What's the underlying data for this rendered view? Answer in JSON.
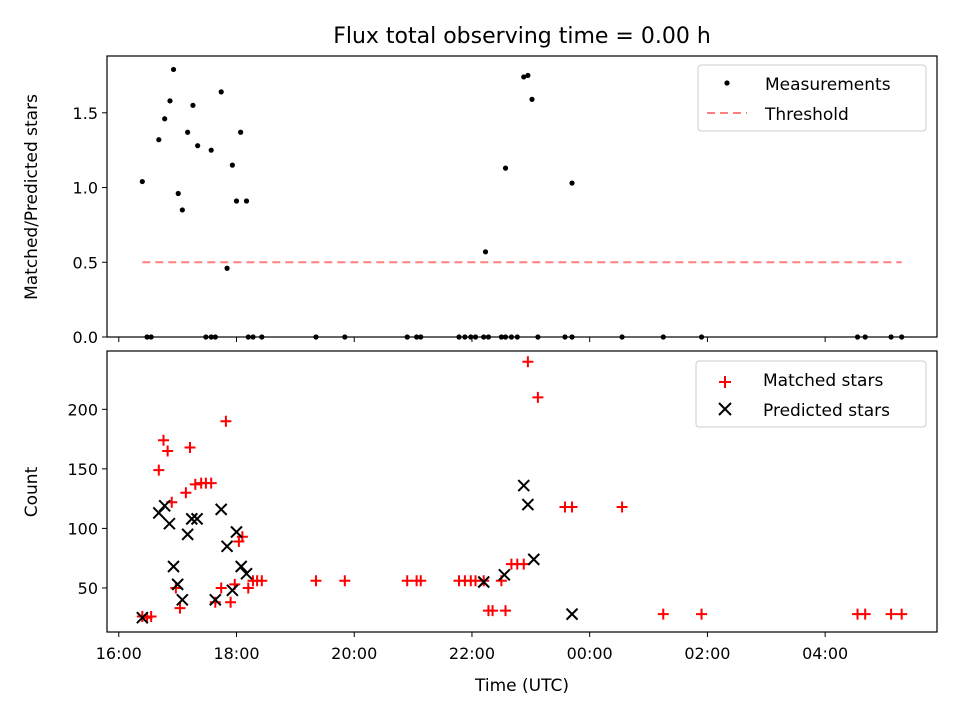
{
  "title": "Flux total observing time = 0.00 h",
  "colors": {
    "measurement": "#000000",
    "threshold": "#ff7f7f",
    "matched": "#ff0000",
    "predicted": "#000000"
  },
  "chart_data": [
    {
      "type": "scatter",
      "ylabel": "Matched/Predicted stars",
      "ylim": [
        0,
        1.88
      ],
      "yticks": [
        0.0,
        0.5,
        1.0,
        1.5
      ],
      "ytick_labels": [
        "0.0",
        "0.5",
        "1.0",
        "1.5"
      ],
      "legend": {
        "position": "top-right",
        "entries": [
          "Measurements",
          "Threshold"
        ]
      },
      "threshold": {
        "value": 0.5,
        "x_start": 16.4,
        "x_end": 29.3
      },
      "series": [
        {
          "name": "Measurements",
          "x": [
            16.4,
            16.68,
            16.78,
            16.87,
            16.93,
            17.01,
            17.08,
            17.17,
            17.26,
            17.34,
            17.57,
            17.74,
            17.84,
            17.93,
            18.0,
            18.07,
            18.17,
            22.23,
            22.57,
            22.88,
            22.95,
            23.02,
            23.7,
            16.48,
            16.55,
            17.48,
            17.57,
            17.64,
            18.2,
            18.28,
            18.43,
            19.35,
            19.84,
            20.9,
            21.06,
            21.13,
            21.78,
            21.88,
            21.98,
            22.06,
            22.2,
            22.28,
            22.5,
            22.57,
            22.67,
            22.77,
            23.12,
            23.58,
            23.7,
            24.55,
            25.25,
            25.9,
            28.55,
            28.68,
            29.12,
            29.3
          ],
          "y": [
            1.04,
            1.32,
            1.46,
            1.58,
            1.79,
            0.96,
            0.85,
            1.37,
            1.55,
            1.28,
            1.25,
            1.64,
            0.46,
            1.15,
            0.91,
            1.37,
            0.91,
            0.57,
            1.13,
            1.74,
            1.75,
            1.59,
            1.03,
            0,
            0,
            0,
            0,
            0,
            0,
            0,
            0,
            0,
            0,
            0,
            0,
            0,
            0,
            0,
            0,
            0,
            0,
            0,
            0,
            0,
            0,
            0,
            0,
            0,
            0,
            0,
            0,
            0,
            0,
            0,
            0,
            0
          ]
        }
      ]
    },
    {
      "type": "scatter",
      "ylabel": "Count",
      "xlabel": "Time (UTC)",
      "xlim": [
        15.8,
        29.9
      ],
      "ylim": [
        13,
        249
      ],
      "yticks": [
        50,
        100,
        150,
        200
      ],
      "ytick_labels": [
        "50",
        "100",
        "150",
        "200"
      ],
      "xticks": [
        16,
        18,
        20,
        22,
        24,
        26,
        28
      ],
      "xtick_labels": [
        "16:00",
        "18:00",
        "20:00",
        "22:00",
        "00:00",
        "02:00",
        "04:00"
      ],
      "legend": {
        "position": "top-right",
        "entries": [
          "Matched stars",
          "Predicted stars"
        ]
      },
      "series": [
        {
          "name": "Matched stars",
          "x": [
            16.4,
            16.48,
            16.55,
            16.68,
            16.76,
            16.83,
            16.9,
            16.97,
            17.04,
            17.14,
            17.21,
            17.3,
            17.4,
            17.48,
            17.57,
            17.64,
            17.74,
            17.82,
            17.9,
            17.97,
            18.04,
            18.1,
            18.2,
            18.28,
            18.35,
            18.43,
            19.35,
            19.84,
            20.9,
            21.06,
            21.13,
            21.78,
            21.88,
            21.98,
            22.06,
            22.2,
            22.28,
            22.35,
            22.57,
            22.5,
            22.67,
            22.77,
            22.88,
            22.95,
            23.12,
            23.58,
            23.7,
            24.55,
            25.25,
            25.9,
            28.55,
            28.68,
            29.12,
            29.3
          ],
          "y": [
            26,
            25,
            26,
            149,
            174,
            165,
            122,
            50,
            33,
            130,
            168,
            137,
            138,
            138,
            138,
            38,
            50,
            190,
            38,
            53,
            89,
            93,
            50,
            56,
            56,
            56,
            56,
            56,
            56,
            56,
            56,
            56,
            56,
            56,
            56,
            56,
            31,
            31,
            31,
            56,
            70,
            70,
            70,
            240,
            210,
            118,
            118,
            118,
            28,
            28,
            28,
            28,
            28,
            28
          ]
        },
        {
          "name": "Predicted stars",
          "x": [
            16.4,
            16.68,
            16.78,
            16.86,
            16.93,
            17.0,
            17.08,
            17.17,
            17.24,
            17.33,
            17.64,
            17.74,
            17.84,
            17.93,
            18.0,
            18.08,
            18.17,
            22.2,
            22.55,
            22.88,
            22.95,
            23.05,
            23.7
          ],
          "y": [
            25,
            113,
            119,
            104,
            68,
            53,
            40,
            95,
            108,
            108,
            40,
            116,
            85,
            48,
            97,
            68,
            62,
            55,
            61,
            136,
            120,
            74,
            28
          ]
        }
      ]
    }
  ]
}
